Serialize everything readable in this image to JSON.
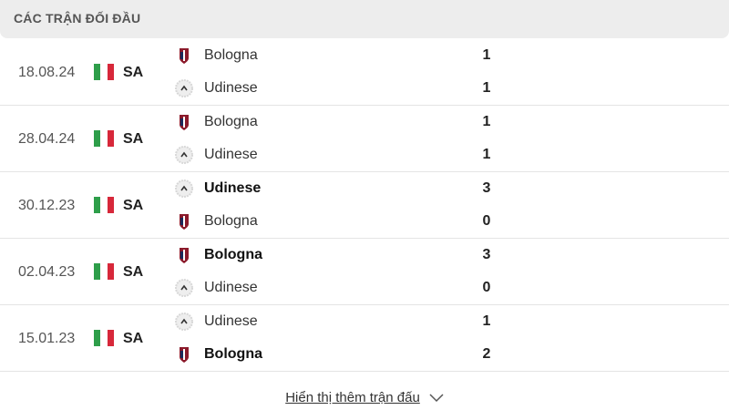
{
  "header": {
    "title": "CÁC TRẬN ĐỐI ĐẦU"
  },
  "colors": {
    "flag_green": "#2e9e4a",
    "flag_white": "#ffffff",
    "flag_red": "#d7283a",
    "bologna": "#8b1a2b",
    "udinese": "#d8d8d8"
  },
  "matches": [
    {
      "date": "18.08.24",
      "league": "SA",
      "teams": [
        {
          "name": "Bologna",
          "crest": "bologna-crest-icon",
          "score": "1",
          "winner": false
        },
        {
          "name": "Udinese",
          "crest": "udinese-crest-icon",
          "score": "1",
          "winner": false
        }
      ]
    },
    {
      "date": "28.04.24",
      "league": "SA",
      "teams": [
        {
          "name": "Bologna",
          "crest": "bologna-crest-icon",
          "score": "1",
          "winner": false
        },
        {
          "name": "Udinese",
          "crest": "udinese-crest-icon",
          "score": "1",
          "winner": false
        }
      ]
    },
    {
      "date": "30.12.23",
      "league": "SA",
      "teams": [
        {
          "name": "Udinese",
          "crest": "udinese-crest-icon",
          "score": "3",
          "winner": true
        },
        {
          "name": "Bologna",
          "crest": "bologna-crest-icon",
          "score": "0",
          "winner": false
        }
      ]
    },
    {
      "date": "02.04.23",
      "league": "SA",
      "teams": [
        {
          "name": "Bologna",
          "crest": "bologna-crest-icon",
          "score": "3",
          "winner": true
        },
        {
          "name": "Udinese",
          "crest": "udinese-crest-icon",
          "score": "0",
          "winner": false
        }
      ]
    },
    {
      "date": "15.01.23",
      "league": "SA",
      "teams": [
        {
          "name": "Udinese",
          "crest": "udinese-crest-icon",
          "score": "1",
          "winner": false
        },
        {
          "name": "Bologna",
          "crest": "bologna-crest-icon",
          "score": "2",
          "winner": true
        }
      ]
    }
  ],
  "footer": {
    "show_more": "Hiển thị thêm trận đấu"
  }
}
